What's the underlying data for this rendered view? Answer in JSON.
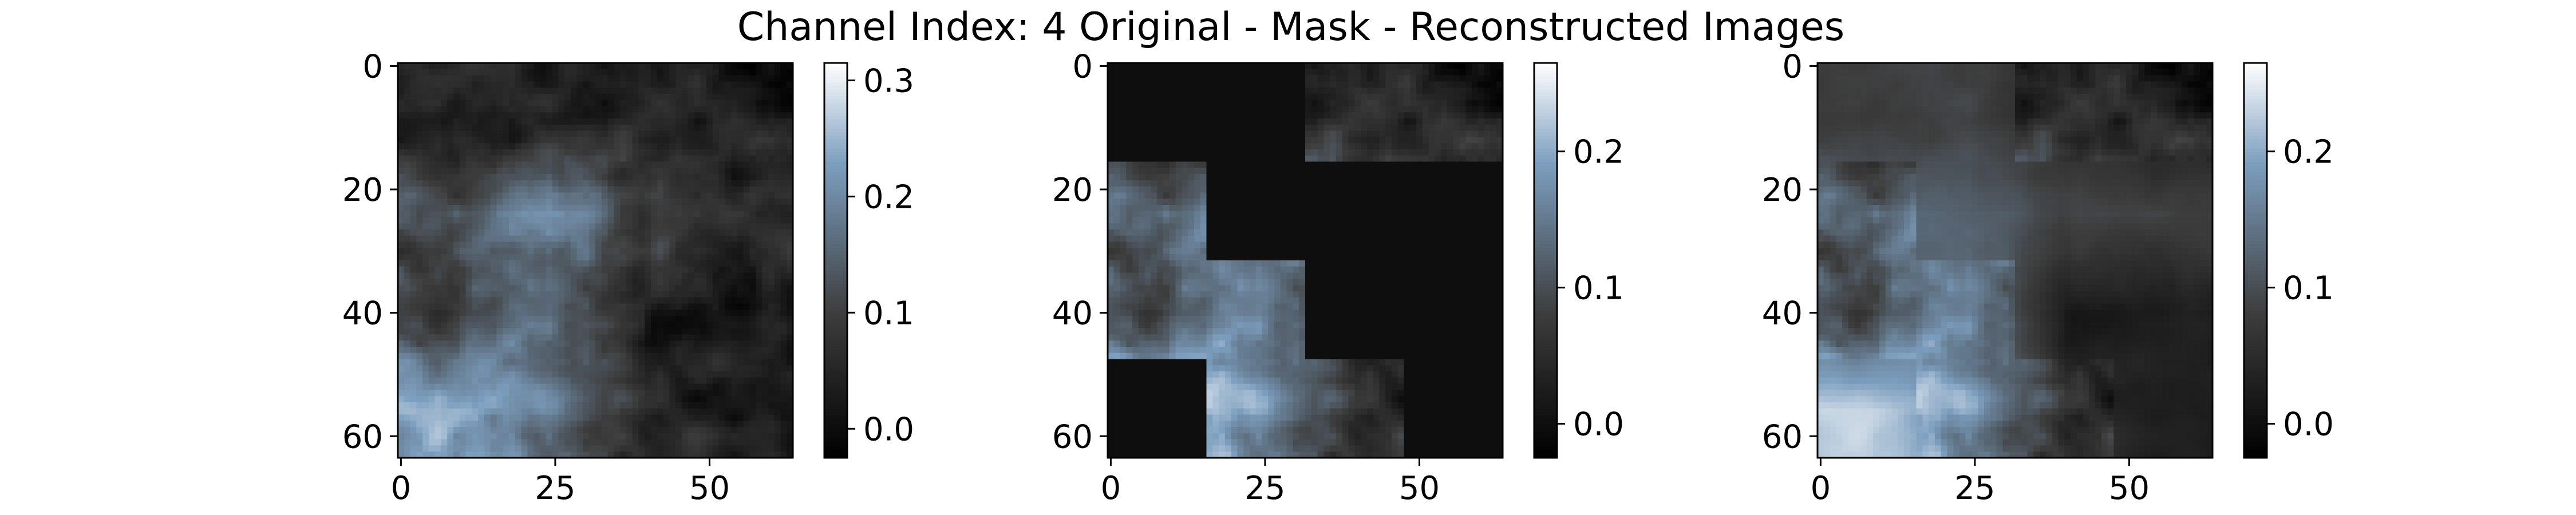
{
  "figure": {
    "title": "Channel Index: 4 Original - Mask - Reconstructed Images"
  },
  "chart_data": [
    {
      "type": "heatmap",
      "panel": "original",
      "title": "",
      "xlabel": "",
      "ylabel": "",
      "xlim": [
        -0.5,
        63.5
      ],
      "ylim": [
        63.5,
        -0.5
      ],
      "xticks": [
        0,
        25,
        50
      ],
      "yticks": [
        0,
        20,
        40,
        60
      ],
      "colormap": "bone",
      "colorbar": {
        "vmin": -0.025,
        "vmax": 0.315,
        "ticks": [
          0.0,
          0.1,
          0.2,
          0.3
        ],
        "tick_labels": [
          "0.0",
          "0.1",
          "0.2",
          "0.3"
        ]
      },
      "grid": false,
      "blocks": [
        [
          0.055,
          0.03,
          0.045,
          0.025
        ],
        [
          0.13,
          0.21,
          0.09,
          0.07
        ],
        [
          0.1,
          0.16,
          0.04,
          0.03
        ],
        [
          0.23,
          0.17,
          0.05,
          0.04
        ]
      ]
    },
    {
      "type": "heatmap",
      "panel": "mask",
      "title": "",
      "xlabel": "",
      "ylabel": "",
      "xlim": [
        -0.5,
        63.5
      ],
      "ylim": [
        63.5,
        -0.5
      ],
      "xticks": [
        0,
        25,
        50
      ],
      "yticks": [
        0,
        20,
        40,
        60
      ],
      "colormap": "bone",
      "colorbar": {
        "vmin": -0.025,
        "vmax": 0.265,
        "ticks": [
          0.0,
          0.1,
          0.2
        ],
        "tick_labels": [
          "0.0",
          "0.1",
          "0.2"
        ]
      },
      "grid": false,
      "visible_mask": [
        [
          false,
          false,
          true,
          true
        ],
        [
          true,
          false,
          false,
          false
        ],
        [
          true,
          true,
          false,
          false
        ],
        [
          false,
          true,
          true,
          false
        ]
      ],
      "masked_value": 0.0
    },
    {
      "type": "heatmap",
      "panel": "reconstructed",
      "title": "",
      "xlabel": "",
      "ylabel": "",
      "xlim": [
        -0.5,
        63.5
      ],
      "ylim": [
        63.5,
        -0.5
      ],
      "xticks": [
        0,
        25,
        50
      ],
      "yticks": [
        0,
        20,
        40,
        60
      ],
      "colormap": "bone",
      "colorbar": {
        "vmin": -0.025,
        "vmax": 0.265,
        "ticks": [
          0.0,
          0.1,
          0.2
        ],
        "tick_labels": [
          "0.0",
          "0.1",
          "0.2"
        ]
      },
      "grid": false,
      "blocks": [
        [
          0.08,
          0.085,
          0.045,
          0.025
        ],
        [
          0.13,
          0.12,
          0.09,
          0.085
        ],
        [
          0.1,
          0.16,
          0.02,
          0.03
        ],
        [
          0.23,
          0.17,
          0.05,
          0.03
        ]
      ]
    }
  ]
}
